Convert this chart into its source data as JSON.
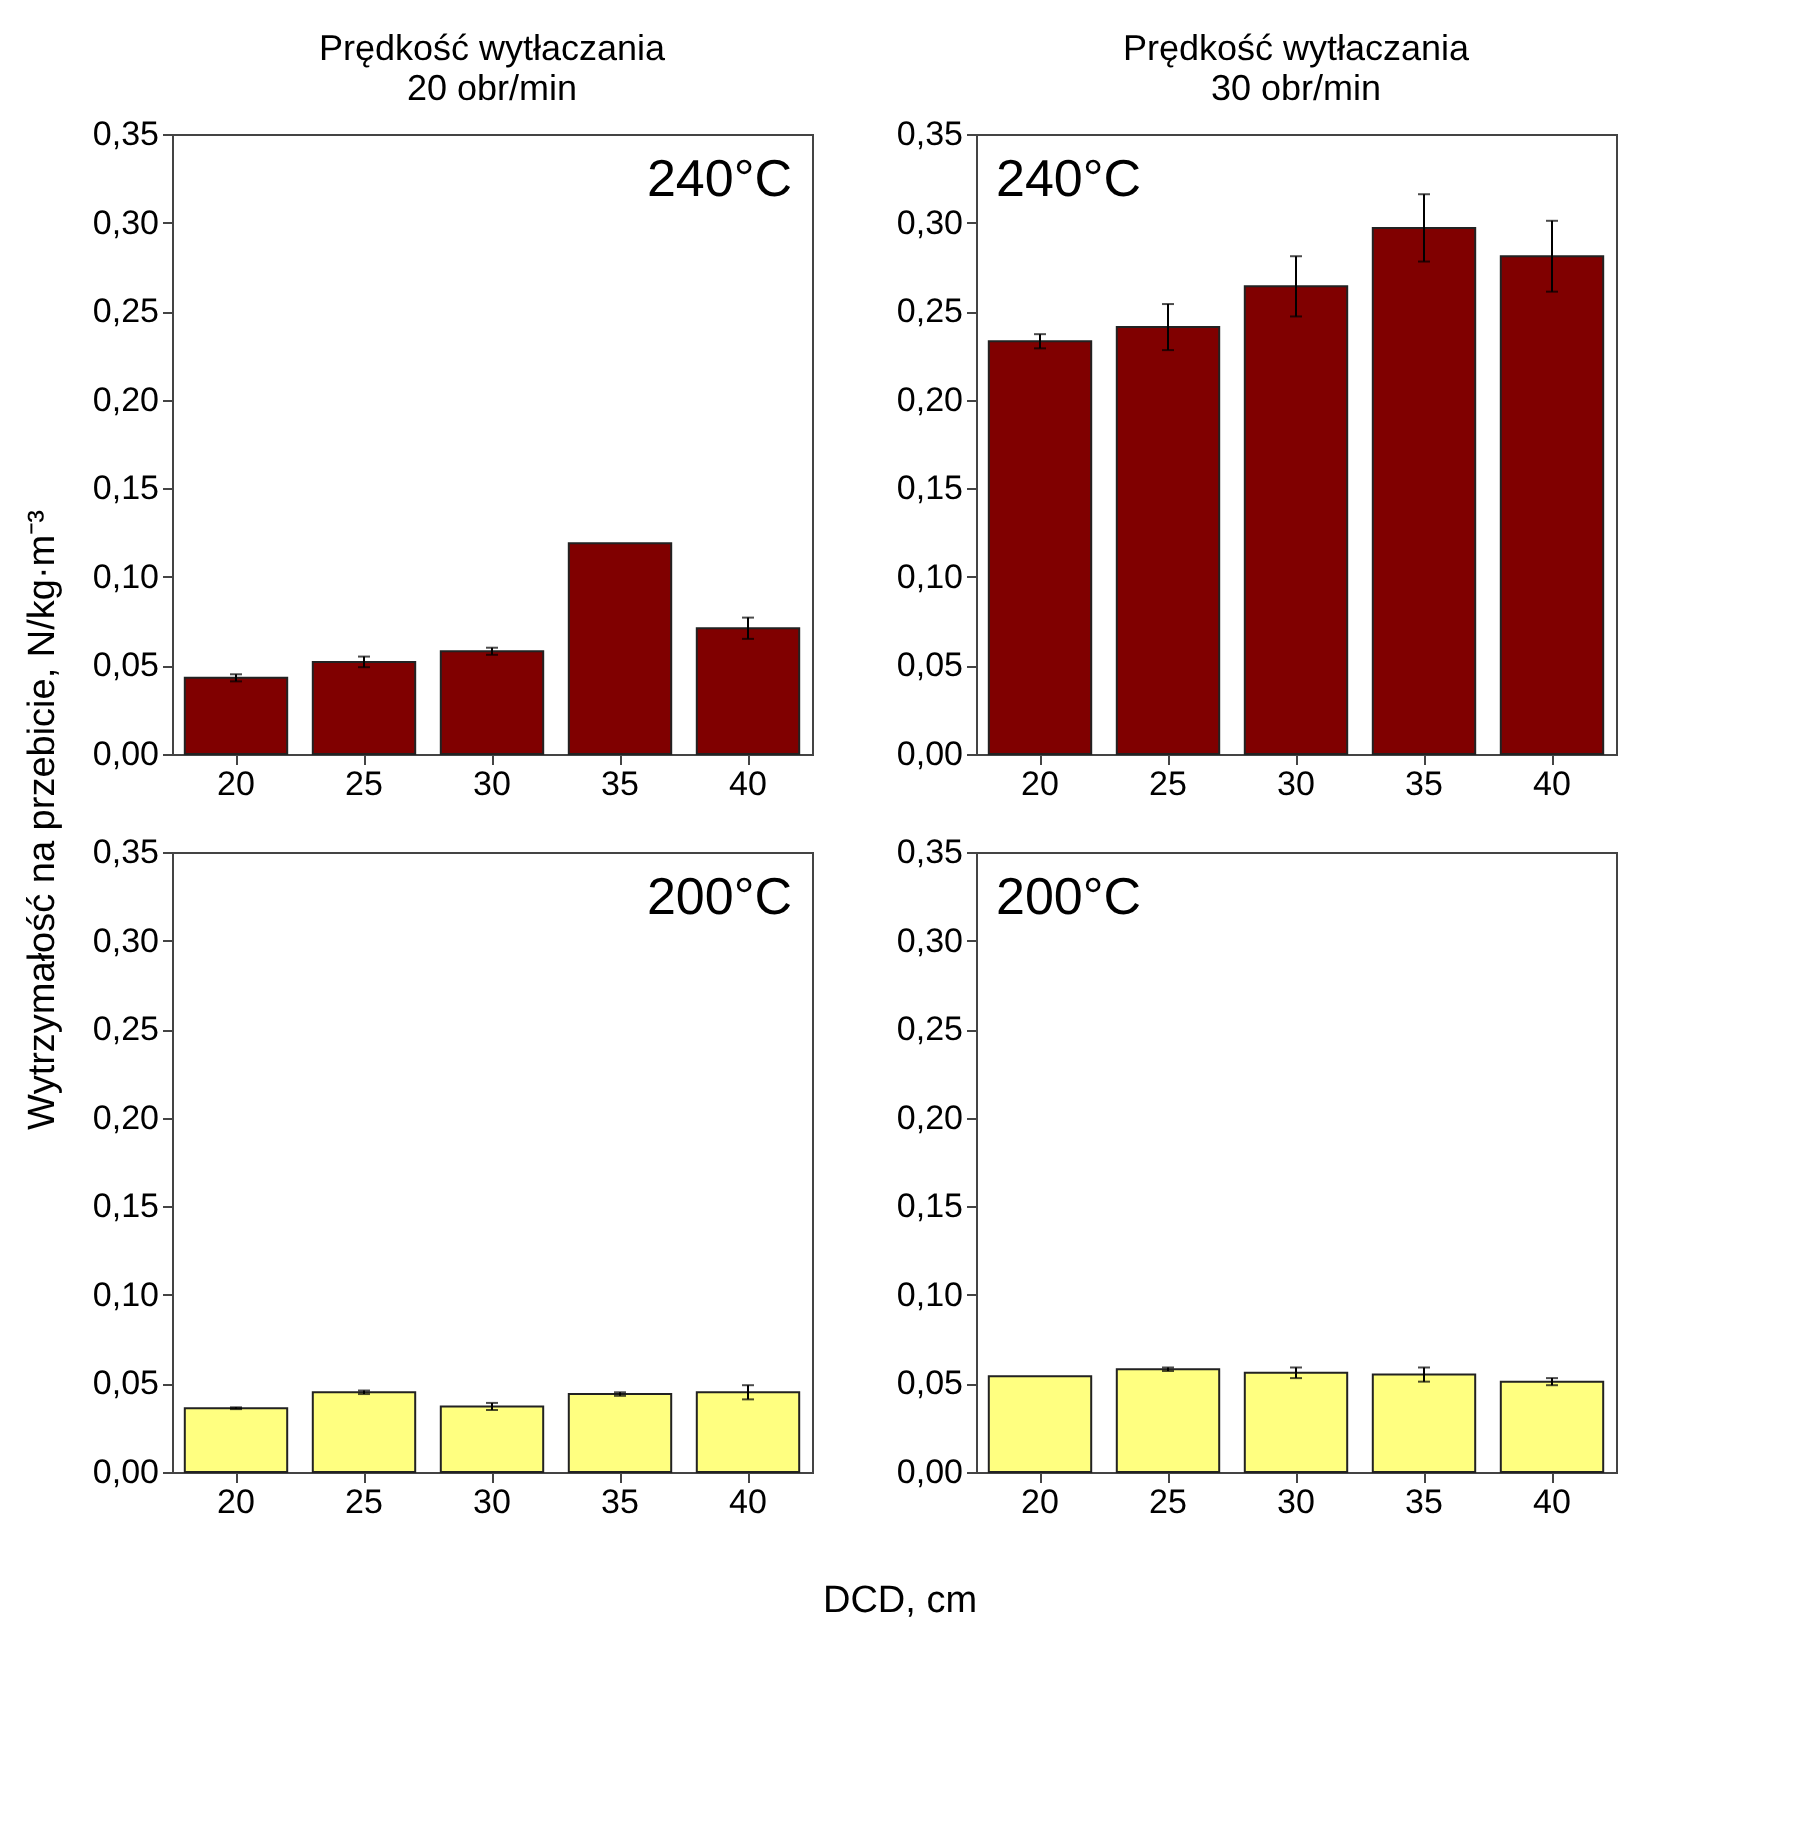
{
  "chart_data": [
    {
      "type": "bar",
      "title": "Prędkość wytłaczania\n20 obr/min",
      "ylabel": "Wytrzymałość na przebicie, N/kg·m⁻³",
      "annotations": [
        "240°C"
      ],
      "categories": [
        "20",
        "25",
        "30",
        "35",
        "40"
      ],
      "color": "#800000",
      "values": [
        0.043,
        0.052,
        0.058,
        0.119,
        0.071
      ],
      "errors": [
        0.002,
        0.003,
        0.002,
        null,
        0.006
      ],
      "ylim": [
        0,
        0.35
      ],
      "yticks": [
        {
          "value": 0,
          "label": "0,00"
        },
        {
          "value": 0.05,
          "label": "0,05"
        },
        {
          "value": 0.1,
          "label": "0,10"
        },
        {
          "value": 0.15,
          "label": "0,15"
        },
        {
          "value": 0.2,
          "label": "0,20"
        },
        {
          "value": 0.25,
          "label": "0,25"
        },
        {
          "value": 0.3,
          "label": "0,30"
        },
        {
          "value": 0.35,
          "label": "0,35"
        }
      ]
    },
    {
      "type": "bar",
      "title": "Prędkość wytłaczania\n30 obr/min",
      "annotations": [
        "240°C"
      ],
      "categories": [
        "20",
        "25",
        "30",
        "35",
        "40"
      ],
      "color": "#800000",
      "values": [
        0.233,
        0.241,
        0.264,
        0.297,
        0.281
      ],
      "errors": [
        0.004,
        0.013,
        0.017,
        0.019,
        0.02
      ],
      "ylim": [
        0,
        0.35
      ],
      "yticks": [
        {
          "value": 0,
          "label": "0,00"
        },
        {
          "value": 0.05,
          "label": "0,05"
        },
        {
          "value": 0.1,
          "label": "0,10"
        },
        {
          "value": 0.15,
          "label": "0,15"
        },
        {
          "value": 0.2,
          "label": "0,20"
        },
        {
          "value": 0.25,
          "label": "0,25"
        },
        {
          "value": 0.3,
          "label": "0,30"
        },
        {
          "value": 0.35,
          "label": "0,35"
        }
      ]
    },
    {
      "type": "bar",
      "xlabel": "DCD, cm",
      "annotations": [
        "200°C"
      ],
      "categories": [
        "20",
        "25",
        "30",
        "35",
        "40"
      ],
      "color": "#ffff80",
      "values": [
        0.036,
        0.045,
        0.037,
        0.044,
        0.045
      ],
      "errors": [
        0.0005,
        0.001,
        0.002,
        0.001,
        0.004
      ],
      "ylim": [
        0,
        0.35
      ],
      "yticks": [
        {
          "value": 0,
          "label": "0,00"
        },
        {
          "value": 0.05,
          "label": "0,05"
        },
        {
          "value": 0.1,
          "label": "0,10"
        },
        {
          "value": 0.15,
          "label": "0,15"
        },
        {
          "value": 0.2,
          "label": "0,20"
        },
        {
          "value": 0.25,
          "label": "0,25"
        },
        {
          "value": 0.3,
          "label": "0,30"
        },
        {
          "value": 0.35,
          "label": "0,35"
        }
      ]
    },
    {
      "type": "bar",
      "annotations": [
        "200°C"
      ],
      "categories": [
        "20",
        "25",
        "30",
        "35",
        "40"
      ],
      "color": "#ffff80",
      "values": [
        0.054,
        0.058,
        0.056,
        0.055,
        0.051
      ],
      "errors": [
        null,
        0.001,
        0.003,
        0.004,
        0.002
      ],
      "ylim": [
        0,
        0.35
      ],
      "yticks": [
        {
          "value": 0,
          "label": "0,00"
        },
        {
          "value": 0.05,
          "label": "0,05"
        },
        {
          "value": 0.1,
          "label": "0,10"
        },
        {
          "value": 0.15,
          "label": "0,15"
        },
        {
          "value": 0.2,
          "label": "0,20"
        },
        {
          "value": 0.25,
          "label": "0,25"
        },
        {
          "value": 0.3,
          "label": "0,30"
        },
        {
          "value": 0.35,
          "label": "0,35"
        }
      ]
    }
  ]
}
